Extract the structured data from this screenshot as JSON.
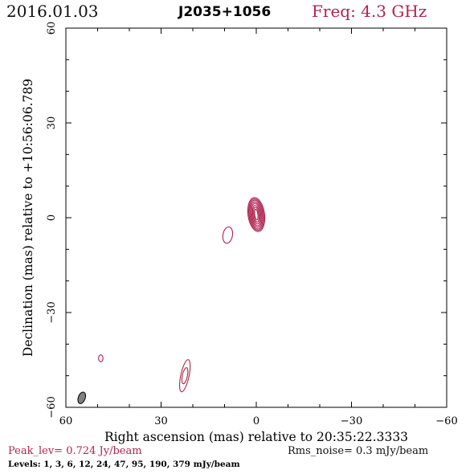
{
  "header": {
    "date": "2016.01.03",
    "source": "J2035+1056",
    "frequency": "Freq: 4.3 GHz"
  },
  "footer": {
    "peak": "Peak_lev=  0.724 Jy/beam",
    "rms": "Rms_noise=  0.3 mJy/beam",
    "levels": "Levels:   1,   3,   6,  12,  24,  47,  95, 190, 379 mJy/beam"
  },
  "colors": {
    "contour": "#b0244f",
    "beam": "#808080",
    "axis": "#000000"
  },
  "chart_data": {
    "type": "contour",
    "title": "J2035+1056",
    "xlabel": "Right ascension (mas) relative to 20:35:22.3333",
    "ylabel": "Declination (mas) relative to +10:56:06.789",
    "xlim": [
      60,
      -60
    ],
    "ylim": [
      -60,
      60
    ],
    "xticks": [
      60,
      30,
      0,
      -30,
      -60
    ],
    "yticks": [
      60,
      30,
      0,
      -30,
      -60
    ],
    "xtick_labels": [
      "60",
      "30",
      "0",
      "−30",
      "−60"
    ],
    "ytick_labels": [
      "60",
      "30",
      "0",
      "−30",
      "−60"
    ],
    "contour_levels_mjy": [
      1,
      3,
      6,
      12,
      24,
      47,
      95,
      190,
      379
    ],
    "components": [
      {
        "name": "core",
        "ra": 0,
        "dec": 1,
        "rings": [
          {
            "rx": 2.6,
            "ry": 5.4,
            "angle": -8
          },
          {
            "rx": 2.3,
            "ry": 5.0,
            "angle": -8
          },
          {
            "rx": 2.0,
            "ry": 4.6,
            "angle": -8
          },
          {
            "rx": 1.7,
            "ry": 4.1,
            "angle": -8
          },
          {
            "rx": 1.4,
            "ry": 3.6,
            "angle": -8
          },
          {
            "rx": 1.1,
            "ry": 3.0,
            "angle": -8
          },
          {
            "rx": 0.8,
            "ry": 2.4,
            "angle": -8
          },
          {
            "rx": 0.5,
            "ry": 1.7,
            "angle": -8
          }
        ]
      },
      {
        "name": "jet-knot-1",
        "ra": 9,
        "dec": -5.5,
        "rings": [
          {
            "rx": 1.5,
            "ry": 2.6,
            "angle": 10
          }
        ]
      },
      {
        "name": "jet-knot-2",
        "ra": 22.5,
        "dec": -50,
        "rings": [
          {
            "rx": 1.3,
            "ry": 5.2,
            "angle": 12
          },
          {
            "rx": 0.8,
            "ry": 2.6,
            "angle": 12
          }
        ]
      },
      {
        "name": "jet-knot-3",
        "ra": 49,
        "dec": -44.5,
        "rings": [
          {
            "rx": 0.7,
            "ry": 1.1,
            "angle": 0
          }
        ]
      }
    ],
    "beam": {
      "ra": 55,
      "dec": -57,
      "rx": 1.1,
      "ry": 1.9,
      "angle": 20
    }
  }
}
